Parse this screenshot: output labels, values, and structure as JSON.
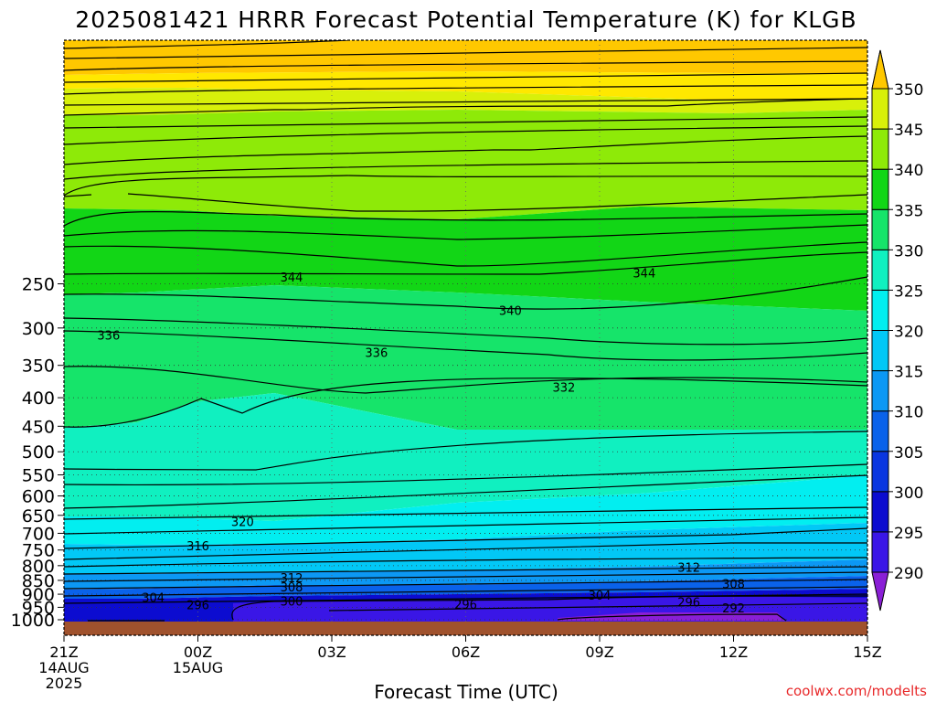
{
  "chart_data": {
    "type": "contour",
    "title": "2025081421 HRRR Forecast Potential Temperature (K) for KLGB",
    "xlabel": "Forecast Time (UTC)",
    "ylabel": "",
    "credit": "coolwx.com/modelts",
    "x_range_hours": [
      0,
      18
    ],
    "y_range_hpa": [
      1000,
      200
    ],
    "y_scale": "log",
    "grid": "dotted",
    "x_ticks": [
      {
        "hour": 0,
        "lines": [
          "21Z",
          "14AUG",
          "2025"
        ]
      },
      {
        "hour": 3,
        "lines": [
          "00Z",
          "15AUG"
        ]
      },
      {
        "hour": 6,
        "lines": [
          "03Z"
        ]
      },
      {
        "hour": 9,
        "lines": [
          "06Z"
        ]
      },
      {
        "hour": 12,
        "lines": [
          "09Z"
        ]
      },
      {
        "hour": 15,
        "lines": [
          "12Z"
        ]
      },
      {
        "hour": 18,
        "lines": [
          "15Z"
        ]
      }
    ],
    "y_ticks": [
      250,
      300,
      350,
      400,
      450,
      500,
      550,
      600,
      650,
      700,
      750,
      800,
      850,
      900,
      950,
      1000
    ],
    "colorbar": {
      "ticks": [
        290,
        295,
        300,
        305,
        310,
        315,
        320,
        325,
        330,
        335,
        340,
        345,
        350
      ],
      "bins": [
        {
          "from": 285,
          "to": 290,
          "color": "#8a1fd6"
        },
        {
          "from": 290,
          "to": 295,
          "color": "#3a16e6"
        },
        {
          "from": 295,
          "to": 300,
          "color": "#0c0cd0"
        },
        {
          "from": 300,
          "to": 305,
          "color": "#0a36e0"
        },
        {
          "from": 305,
          "to": 310,
          "color": "#0a62ea"
        },
        {
          "from": 310,
          "to": 315,
          "color": "#0c98f4"
        },
        {
          "from": 315,
          "to": 320,
          "color": "#02c8f6"
        },
        {
          "from": 320,
          "to": 325,
          "color": "#02eef0"
        },
        {
          "from": 325,
          "to": 330,
          "color": "#10f0c0"
        },
        {
          "from": 330,
          "to": 335,
          "color": "#16e46a"
        },
        {
          "from": 335,
          "to": 340,
          "color": "#12d616"
        },
        {
          "from": 340,
          "to": 345,
          "color": "#8eea08"
        },
        {
          "from": 345,
          "to": 350,
          "color": "#d8f00a"
        },
        {
          "from": 350,
          "to": 355,
          "color": "#ffe800"
        },
        {
          "from": 355,
          "to": 362,
          "color": "#ffc800"
        }
      ]
    },
    "contour_labels": [
      {
        "value": "344",
        "hour": 5.1,
        "hpa": 243
      },
      {
        "value": "344",
        "hour": 13.0,
        "hpa": 239
      },
      {
        "value": "340",
        "hour": 10.0,
        "hpa": 279
      },
      {
        "value": "336",
        "hour": 1.0,
        "hpa": 309
      },
      {
        "value": "336",
        "hour": 7.0,
        "hpa": 332
      },
      {
        "value": "332",
        "hour": 11.2,
        "hpa": 383
      },
      {
        "value": "320",
        "hour": 4.0,
        "hpa": 667
      },
      {
        "value": "316",
        "hour": 3.0,
        "hpa": 737
      },
      {
        "value": "312",
        "hour": 5.1,
        "hpa": 840
      },
      {
        "value": "312",
        "hour": 14.0,
        "hpa": 805
      },
      {
        "value": "308",
        "hour": 5.1,
        "hpa": 873
      },
      {
        "value": "308",
        "hour": 15.0,
        "hpa": 861
      },
      {
        "value": "304",
        "hour": 2.0,
        "hpa": 911
      },
      {
        "value": "304",
        "hour": 12.0,
        "hpa": 903
      },
      {
        "value": "300",
        "hour": 5.1,
        "hpa": 925
      },
      {
        "value": "296",
        "hour": 3.0,
        "hpa": 939
      },
      {
        "value": "296",
        "hour": 9.0,
        "hpa": 938
      },
      {
        "value": "296",
        "hour": 14.0,
        "hpa": 929
      },
      {
        "value": "292",
        "hour": 15.0,
        "hpa": 952
      }
    ],
    "ground_color": "#a0522d"
  }
}
